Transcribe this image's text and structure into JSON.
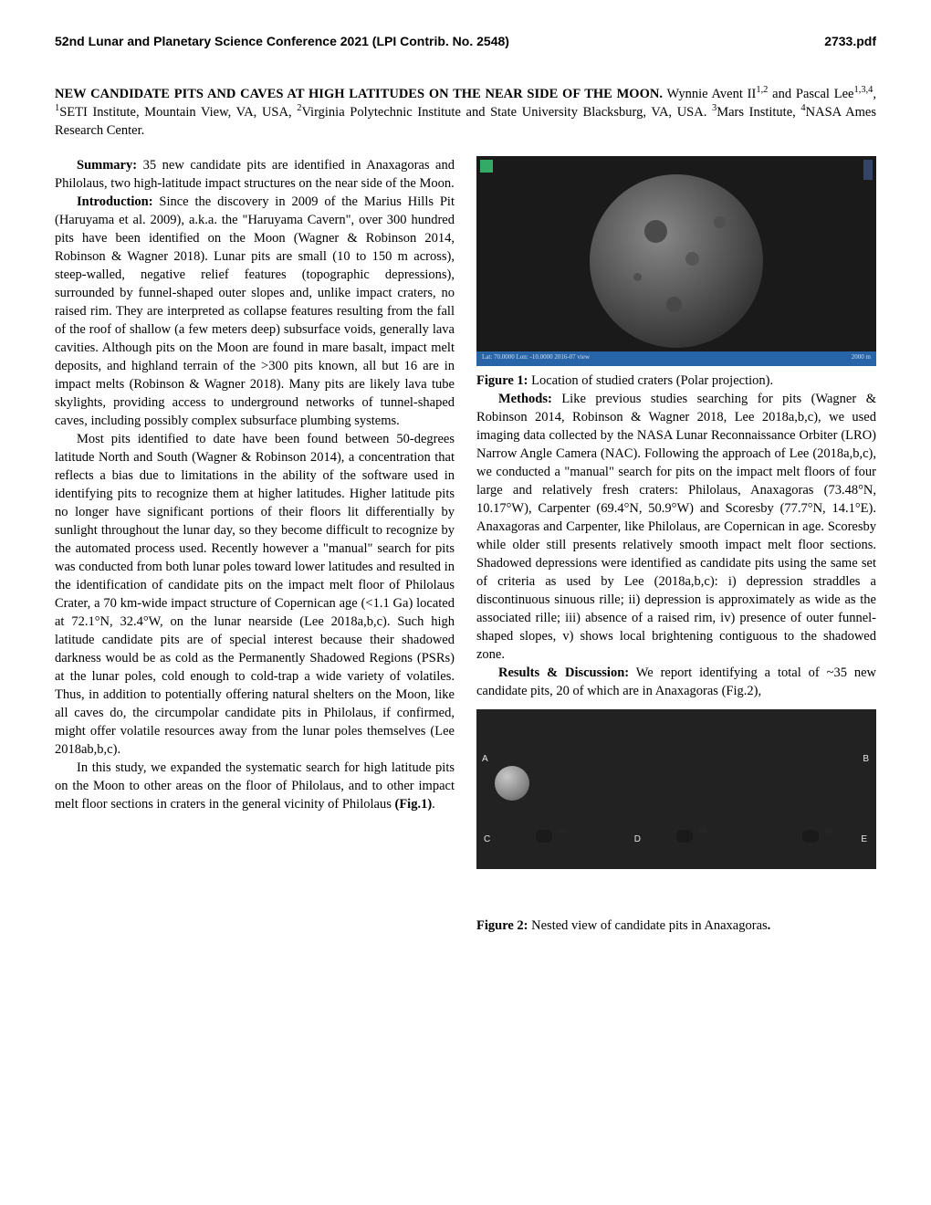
{
  "header": {
    "conference": "52nd Lunar and Planetary Science Conference 2021 (LPI Contrib. No. 2548)",
    "docnum": "2733.pdf"
  },
  "title": "NEW CANDIDATE PITS AND CAVES AT HIGH LATITUDES ON THE NEAR SIDE OF THE MOON.",
  "authors_html": "Wynnie Avent II<sup>1,2</sup> and Pascal Lee<sup>1,3,4</sup>, <sup>1</sup>SETI Institute, Mountain View, VA, USA, <sup>2</sup>Virginia Polytechnic Institute and State University Blacksburg, VA, USA. <sup>3</sup>Mars Institute, <sup>4</sup>NASA Ames Research Center.",
  "left": {
    "summary_head": "Summary:",
    "summary_body": " 35 new candidate pits are identified in Anaxagoras and Philolaus, two high-latitude impact structures on the near side of the Moon.",
    "intro_head": "Introduction:",
    "intro_body": "  Since the discovery in 2009 of the Marius Hills Pit (Haruyama et al. 2009), a.k.a. the \"Haruyama Cavern\", over 300 hundred pits have been identified on the Moon (Wagner & Robinson 2014, Robinson & Wagner 2018). Lunar pits are small (10 to 150 m across), steep-walled, negative relief features (topographic depressions), surrounded by funnel-shaped outer slopes and, unlike impact craters, no raised rim. They are interpreted as collapse features resulting from the fall of the roof of shallow (a few meters deep) subsurface voids, generally lava cavities. Although pits on the Moon are found in mare basalt, impact melt deposits, and highland terrain of the >300 pits known, all but 16 are in impact melts (Robinson & Wagner 2018). Many pits are likely lava tube skylights, providing access to underground networks of tunnel-shaped caves, including possibly complex subsurface plumbing systems.",
    "p2": "Most pits identified to date have been found between 50-degrees latitude North and South (Wagner & Robinson 2014), a concentration that reflects a bias due to limitations in the ability of the software used in identifying pits to recognize them at higher latitudes. Higher latitude pits no longer have significant portions of their floors lit differentially by sunlight throughout the lunar day, so they become difficult to recognize by the automated process used. Recently however a \"manual\" search for pits was conducted from both lunar poles toward lower latitudes and resulted in the identification of candidate pits on the impact melt floor of Philolaus Crater, a 70 km-wide impact structure of Copernican age (<1.1 Ga) located at 72.1°N, 32.4°W, on the lunar nearside (Lee 2018a,b,c). Such high latitude candidate pits are of special interest because their shadowed darkness would be as cold as the Permanently Shadowed Regions (PSRs) at the lunar poles, cold enough to cold-trap a wide variety of volatiles. Thus, in addition to potentially offering natural shelters on the Moon, like all caves do, the circumpolar candidate pits in Philolaus, if confirmed, might offer volatile resources away from the lunar poles themselves (Lee 2018ab,b,c).",
    "p3_a": "In this study, we expanded the systematic search for high latitude pits on the Moon to other areas on the floor of Philolaus, and to other impact melt floor sections in craters in the general vicinity of Philolaus ",
    "p3_b": "(Fig.1)",
    "p3_c": "."
  },
  "right": {
    "fig1_caption_bold": "Figure 1:",
    "fig1_caption_rest": " Location of studied craters (Polar projection).",
    "methods_head": "Methods:",
    "methods_body": " Like previous studies searching for pits (Wagner & Robinson 2014, Robinson & Wagner 2018, Lee 2018a,b,c), we used imaging data collected by the NASA Lunar Reconnaissance Orbiter (LRO) Narrow Angle Camera (NAC). Following the approach of Lee (2018a,b,c), we conducted a \"manual\" search for pits on the impact melt floors of four large and relatively fresh craters: Philolaus, Anaxagoras (73.48°N, 10.17°W), Carpenter (69.4°N, 50.9°W) and Scoresby (77.7°N, 14.1°E). Anaxagoras and Carpenter, like Philolaus, are Copernican in age. Scoresby while older still presents relatively smooth impact melt floor sections. Shadowed depressions were identified as candidate pits using the same set of criteria as used by Lee (2018a,b,c): i) depression straddles a discontinuous sinuous rille; ii) depression is approximately as wide as the associated rille; iii) absence of a raised rim, iv) presence of outer funnel-shaped slopes, v) shows local brightening contiguous to the shadowed zone.",
    "results_head": "Results & Discussion:",
    "results_body": " We report identifying a total of ~35 new candidate pits, 20 of which are in Anaxagoras (Fig.2),",
    "fig2_caption_bold": "Figure 2:",
    "fig2_caption_rest_a": " Nested view of candidate pits in Anaxagoras",
    "fig2_caption_rest_b": ".",
    "fig2_labels": {
      "a": "A",
      "b": "B",
      "c": "C",
      "d": "D",
      "e": "E"
    },
    "fig1_bar_left": "Lat: 70.0000  Lon: -10.0000  2016-07 view",
    "fig1_bar_right": "2000 m"
  }
}
